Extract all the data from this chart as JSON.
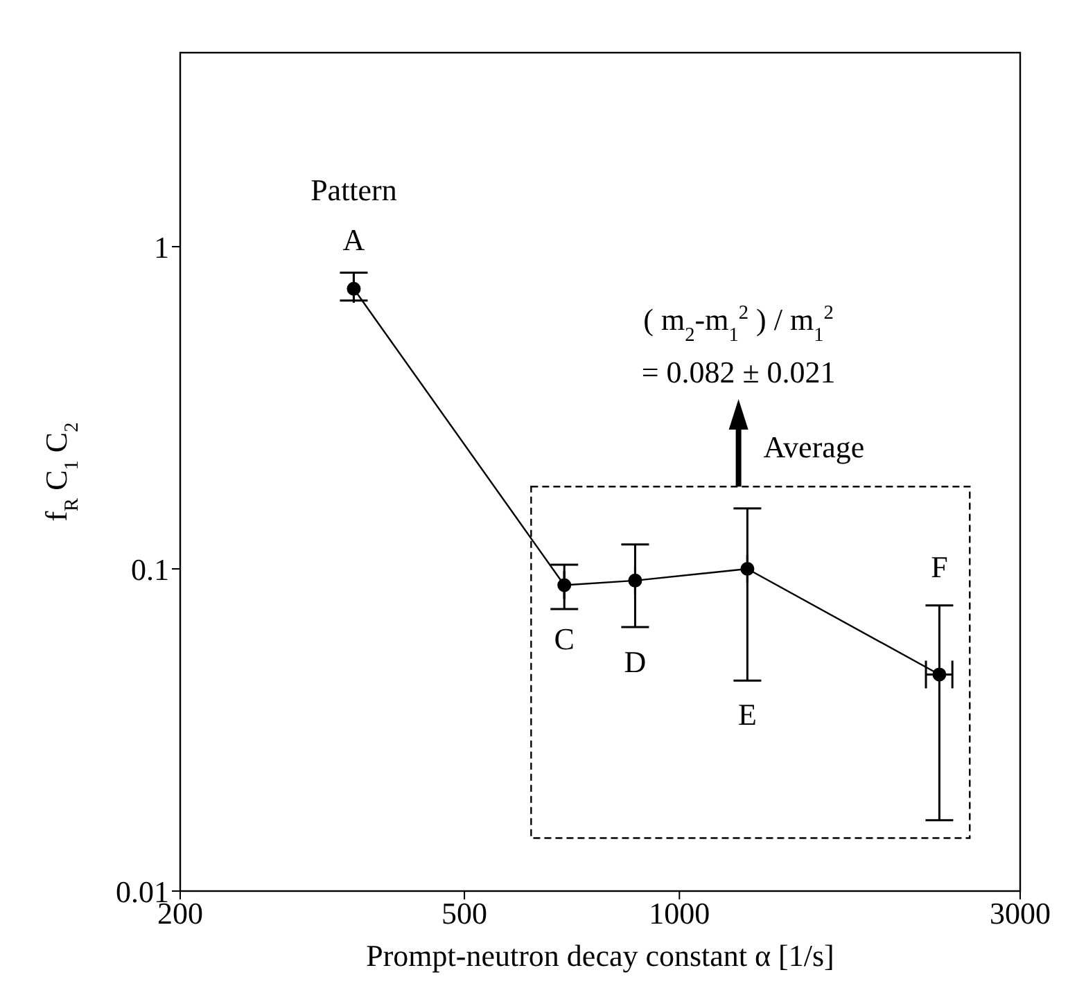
{
  "chart_data": {
    "type": "scatter",
    "xlabel": "Prompt-neutron decay constant α  [1/s]",
    "ylabel": "f$_{R}$ C$_{1}$ C$_{2}$",
    "x": [
      350,
      690,
      867,
      1245,
      2312
    ],
    "values": [
      0.74,
      0.089,
      0.092,
      0.1,
      0.047
    ],
    "errors": [
      [
        0.68,
        0.83
      ],
      [
        0.075,
        0.103
      ],
      [
        0.066,
        0.119
      ],
      [
        0.045,
        0.154
      ],
      [
        0.0166,
        0.077
      ]
    ],
    "xerrors": [
      null,
      null,
      null,
      null,
      [
        2214,
        2411
      ]
    ],
    "color": "#000000",
    "marker": "circle",
    "line_style": "solid",
    "log": "xy",
    "xlim": [
      200,
      3000
    ],
    "xticks": [
      200,
      500,
      1000,
      3000
    ],
    "ylim": [
      0.01,
      4
    ],
    "yticks": [
      0.01,
      0.1,
      1
    ],
    "annotations": [
      {
        "text": "Pattern",
        "x": 350,
        "y": 0.74
      },
      {
        "text": "A",
        "x": 350,
        "y": 0.74
      },
      {
        "text": "C",
        "x": 690,
        "y": 0.089
      },
      {
        "text": "D",
        "x": 867,
        "y": 0.092
      },
      {
        "text": "E",
        "x": 1245,
        "y": 0.045
      },
      {
        "text": "F",
        "x": 2312,
        "y": 0.047
      },
      "( m$_{2}$-m$_{1}$$^{2}$ ) / m$_{1}$$^{2}$",
      "= 0.082 ± 0.021",
      "Average"
    ]
  }
}
